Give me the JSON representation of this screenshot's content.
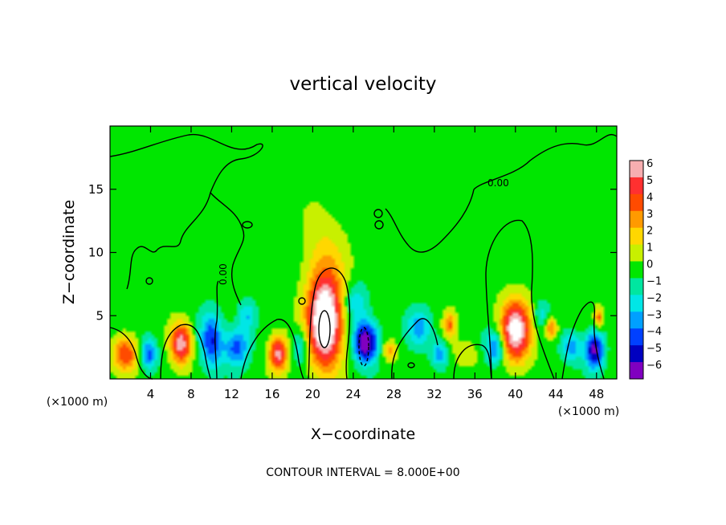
{
  "chart_data": {
    "type": "heatmap",
    "title": "vertical velocity",
    "xlabel": "X−coordinate",
    "ylabel": "Z−coordinate",
    "x_unit_left": "(×1000 m)",
    "x_unit_right": "(×1000 m)",
    "xlim": [
      0,
      50
    ],
    "ylim": [
      0,
      20
    ],
    "xticks": [
      4,
      8,
      12,
      16,
      20,
      24,
      28,
      32,
      36,
      40,
      44,
      48
    ],
    "xtick_labels": [
      "4",
      "8",
      "12",
      "16",
      "20",
      "24",
      "28",
      "32",
      "36",
      "40",
      "44",
      "48"
    ],
    "yticks": [
      5,
      10,
      15
    ],
    "ytick_labels": [
      "5",
      "10",
      "15"
    ],
    "contour_label": "0.00",
    "footer": "CONTOUR INTERVAL = 8.000E+00",
    "colorbar": {
      "levels": [
        6,
        5,
        4,
        3,
        2,
        1,
        0,
        -1,
        -2,
        -3,
        -4,
        -5,
        -6
      ],
      "labels": [
        "6",
        "5",
        "4",
        "3",
        "2",
        "1",
        "0",
        "−1",
        "−2",
        "−3",
        "−4",
        "−5",
        "−6"
      ],
      "colors": [
        "#f7aeb0",
        "#ff3030",
        "#ff4b00",
        "#ff9a00",
        "#ffd700",
        "#c8f000",
        "#00e600",
        "#00e6a0",
        "#00e6e6",
        "#00a0ff",
        "#0040ff",
        "#0000c0",
        "#8000c0"
      ]
    },
    "features": [
      {
        "kind": "updraft",
        "x": 1.5,
        "z": 2.0,
        "sx": 1.2,
        "sz": 1.4,
        "w": 4.5
      },
      {
        "kind": "downdraft",
        "x": 3.8,
        "z": 2.0,
        "sx": 0.8,
        "sz": 1.2,
        "w": -4
      },
      {
        "kind": "updraft",
        "x": 7.0,
        "z": 2.8,
        "sx": 1.0,
        "sz": 1.6,
        "w": 6.5
      },
      {
        "kind": "downdraft",
        "x": 10.0,
        "z": 3.0,
        "sx": 1.1,
        "sz": 2.2,
        "w": -4.5
      },
      {
        "kind": "downdraft",
        "x": 12.5,
        "z": 2.5,
        "sx": 1.2,
        "sz": 1.5,
        "w": -4
      },
      {
        "kind": "downdraft",
        "x": 13.5,
        "z": 5.0,
        "sx": 0.9,
        "sz": 1.2,
        "w": -2.5
      },
      {
        "kind": "updraft",
        "x": 16.6,
        "z": 2.0,
        "sx": 0.9,
        "sz": 1.4,
        "w": 6
      },
      {
        "kind": "downdraft",
        "x": 18.8,
        "z": 2.6,
        "sx": 0.8,
        "sz": 1.4,
        "w": -2.5
      },
      {
        "kind": "updraft",
        "x": 21.2,
        "z": 4.5,
        "sx": 1.7,
        "sz": 3.5,
        "w": 9
      },
      {
        "kind": "updraft",
        "x": 21.2,
        "z": 9.5,
        "sx": 2.2,
        "sz": 4.0,
        "w": 1.5
      },
      {
        "kind": "downdraft",
        "x": 25.2,
        "z": 2.9,
        "sx": 1.2,
        "sz": 1.6,
        "w": -7
      },
      {
        "kind": "downdraft",
        "x": 24.2,
        "z": 6.0,
        "sx": 1.2,
        "sz": 1.5,
        "w": -2.5
      },
      {
        "kind": "updraft",
        "x": 27.6,
        "z": 2.2,
        "sx": 0.7,
        "sz": 0.8,
        "w": 3
      },
      {
        "kind": "downdraft",
        "x": 30.5,
        "z": 4.0,
        "sx": 1.2,
        "sz": 1.5,
        "w": -3
      },
      {
        "kind": "updraft",
        "x": 33.5,
        "z": 4.3,
        "sx": 0.6,
        "sz": 1.0,
        "w": 3.5
      },
      {
        "kind": "downdraft",
        "x": 32.5,
        "z": 2.0,
        "sx": 0.8,
        "sz": 1.0,
        "w": -3
      },
      {
        "kind": "updraft",
        "x": 35.0,
        "z": 2.0,
        "sx": 1.2,
        "sz": 1.0,
        "w": 1.5
      },
      {
        "kind": "downdraft",
        "x": 38.0,
        "z": 2.5,
        "sx": 1.0,
        "sz": 1.4,
        "w": -4
      },
      {
        "kind": "updraft",
        "x": 40.0,
        "z": 3.8,
        "sx": 1.5,
        "sz": 2.4,
        "w": 7.5
      },
      {
        "kind": "downdraft",
        "x": 42.5,
        "z": 5.0,
        "sx": 0.8,
        "sz": 1.2,
        "w": -2
      },
      {
        "kind": "updraft",
        "x": 43.5,
        "z": 4.0,
        "sx": 0.6,
        "sz": 0.8,
        "w": 4
      },
      {
        "kind": "downdraft",
        "x": 45.5,
        "z": 2.5,
        "sx": 1.0,
        "sz": 1.2,
        "w": -3
      },
      {
        "kind": "downdraft",
        "x": 47.8,
        "z": 2.3,
        "sx": 0.9,
        "sz": 1.5,
        "w": -6
      },
      {
        "kind": "updraft",
        "x": 48.2,
        "z": 4.8,
        "sx": 0.4,
        "sz": 0.8,
        "w": 4
      }
    ]
  }
}
